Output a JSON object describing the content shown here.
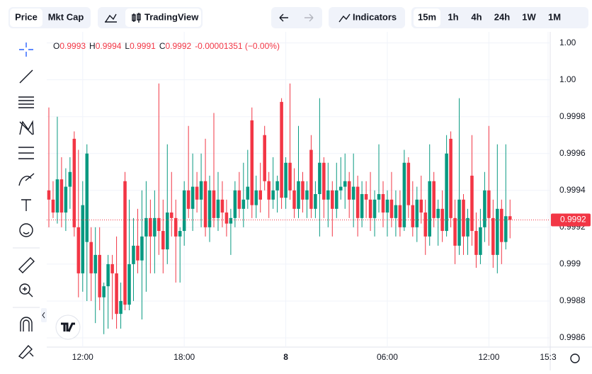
{
  "toolbar": {
    "tabs": [
      "Price",
      "Mkt Cap"
    ],
    "chart_style": "TradingView",
    "indicators": "Indicators",
    "intervals": [
      "15m",
      "1h",
      "4h",
      "24h",
      "1W",
      "1M"
    ]
  },
  "chart_data": {
    "type": "candlestick",
    "legend": [
      {
        "label": "O",
        "value": "0.9993"
      },
      {
        "label": "H",
        "value": "0.9994"
      },
      {
        "label": "L",
        "value": "0.9991"
      },
      {
        "label": "C",
        "value": "0.9992"
      }
    ],
    "change": "-0.00001351 (−0.00%)",
    "up_color": "#089981",
    "down_color": "#f23645",
    "categories": [
      null,
      null,
      null,
      null,
      null,
      null,
      null,
      null,
      "12:00",
      null,
      null,
      null,
      null,
      null,
      null,
      null,
      null,
      null,
      null,
      null,
      null,
      null,
      null,
      null,
      null,
      null,
      null,
      null,
      null,
      null,
      null,
      null,
      "18:00",
      null,
      null,
      null,
      null,
      null,
      null,
      null,
      null,
      null,
      null,
      null,
      null,
      null,
      null,
      null,
      null,
      null,
      null,
      null,
      null,
      null,
      null,
      null,
      "8",
      null,
      null,
      null,
      null,
      null,
      null,
      null,
      null,
      null,
      null,
      null,
      null,
      null,
      null,
      null,
      null,
      null,
      null,
      null,
      null,
      null,
      null,
      null,
      "06:00",
      null,
      null,
      null,
      null,
      null,
      null,
      null,
      null,
      null,
      null,
      null,
      null,
      null,
      null,
      null,
      null,
      null,
      null,
      null,
      null,
      null,
      null,
      null,
      "12:00",
      null,
      null,
      null,
      null,
      null,
      null,
      null,
      null,
      null,
      null,
      null,
      null,
      null,
      "15:3"
    ],
    "open": [
      0.9994,
      0.99935,
      0.99928,
      0.99946,
      0.99928,
      0.99942,
      0.99968,
      0.9992,
      0.99895,
      0.99912,
      0.99912,
      0.99895,
      0.99905,
      0.99882,
      0.99888,
      0.999,
      0.99895,
      0.99873,
      0.99945,
      0.99878,
      0.999,
      0.9991,
      0.99902,
      0.99915,
      0.99925,
      0.99915,
      0.99925,
      0.99918,
      0.99908,
      0.99928,
      0.99925,
      0.99915,
      0.99918,
      0.9994,
      0.9993,
      0.99942,
      0.99935,
      0.99945,
      0.9992,
      0.9994,
      0.99925,
      0.99935,
      0.99928,
      0.99922,
      0.99925,
      0.9994,
      0.9993,
      0.99935,
      0.99978,
      0.99932,
      0.9994,
      0.9997,
      0.99945,
      0.99935,
      0.9994,
      0.99988,
      0.99936,
      0.99955,
      0.9994,
      0.9993,
      0.99945,
      0.99935,
      0.99962,
      0.9993,
      0.99938,
      0.99955,
      0.99935,
      0.9994,
      0.9993,
      0.9994,
      0.99942,
      0.99945,
      0.99935,
      0.99942,
      0.99925,
      0.99938,
      0.99935,
      0.99925,
      0.99935,
      0.99938,
      0.99928,
      0.99935,
      0.99925,
      0.99932,
      0.9992,
      0.99955,
      0.99932,
      0.9992,
      0.99935,
      0.99928,
      0.99915,
      0.99945,
      0.99925,
      0.9993,
      0.99918,
      0.99968,
      0.99925,
      0.9991,
      0.99935,
      0.99915,
      0.99948,
      0.99918,
      0.99905,
      0.9992,
      0.9994,
      0.99925,
      0.99905,
      0.9993,
      0.99912,
      0.99926,
      null,
      null,
      null,
      null,
      null,
      null,
      null,
      null,
      null
    ],
    "high": [
      0.99985,
      0.99945,
      0.9998,
      0.99958,
      0.99952,
      0.99958,
      0.99972,
      0.99962,
      0.99945,
      0.99965,
      0.9992,
      0.9992,
      0.9992,
      0.9989,
      0.99905,
      0.99905,
      0.99915,
      0.9989,
      0.9995,
      0.99935,
      0.99925,
      0.9993,
      0.9994,
      0.99945,
      0.99935,
      0.9994,
      0.99998,
      0.99935,
      0.99965,
      0.9995,
      0.99935,
      0.9992,
      0.99945,
      0.99975,
      0.9996,
      0.9995,
      0.9996,
      0.99968,
      0.99948,
      0.99982,
      0.9995,
      0.99945,
      0.99935,
      0.9993,
      0.99945,
      0.9995,
      0.99955,
      0.99962,
      0.99985,
      0.99948,
      0.99955,
      0.99975,
      0.9995,
      0.99958,
      0.99948,
      0.9999,
      0.99958,
      0.99998,
      0.99952,
      0.99975,
      0.9995,
      0.99945,
      0.9997,
      0.99945,
      0.9999,
      0.99958,
      0.99955,
      0.99945,
      0.99955,
      0.99958,
      0.9996,
      0.9995,
      0.9996,
      0.99948,
      0.99945,
      0.99945,
      0.9995,
      0.9994,
      0.99965,
      0.99945,
      0.9994,
      0.9995,
      0.9994,
      0.9994,
      0.99962,
      0.99958,
      0.99945,
      0.99942,
      0.99948,
      0.99935,
      0.99965,
      0.9995,
      0.99935,
      0.9994,
      0.9997,
      0.99972,
      0.99935,
      0.9999,
      0.99938,
      0.9993,
      0.9997,
      0.99928,
      0.9993,
      0.9995,
      0.99975,
      0.99935,
      0.99965,
      0.99935,
      0.99965,
      0.99935,
      null,
      null,
      null,
      null,
      null,
      null,
      null,
      null,
      null
    ],
    "low": [
      0.9992,
      0.99925,
      0.99922,
      0.9992,
      0.99918,
      0.9993,
      0.99915,
      0.99882,
      0.99885,
      0.9988,
      0.9988,
      0.99868,
      0.99875,
      0.99862,
      0.99865,
      0.9987,
      0.99865,
      0.99865,
      0.99875,
      0.99875,
      0.9988,
      0.99895,
      0.9987,
      0.99885,
      0.99895,
      0.99895,
      0.99905,
      0.99895,
      0.999,
      0.99915,
      0.9989,
      0.9989,
      0.9991,
      0.99925,
      0.99918,
      0.99928,
      0.9992,
      0.99915,
      0.99912,
      0.9992,
      0.99918,
      0.9992,
      0.99915,
      0.99905,
      0.9992,
      0.99925,
      0.9992,
      0.9993,
      0.99925,
      0.99925,
      0.99928,
      0.9994,
      0.99925,
      0.9993,
      0.99928,
      0.9993,
      0.9993,
      0.99935,
      0.99925,
      0.99925,
      0.99928,
      0.99925,
      0.99925,
      0.99925,
      0.99915,
      0.99925,
      0.9992,
      0.99915,
      0.99925,
      0.99935,
      0.9993,
      0.99925,
      0.9992,
      0.99915,
      0.9992,
      0.99925,
      0.99918,
      0.99915,
      0.99928,
      0.9992,
      0.99915,
      0.9992,
      0.99915,
      0.99915,
      0.99918,
      0.99925,
      0.99915,
      0.99912,
      0.99922,
      0.99905,
      0.9991,
      0.9992,
      0.9991,
      0.99912,
      0.99915,
      0.9992,
      0.999,
      0.99905,
      0.99905,
      0.99905,
      0.9991,
      0.99898,
      0.999,
      0.99912,
      0.9991,
      0.99898,
      0.99895,
      0.999,
      0.99908,
      0.99914,
      null,
      null,
      null,
      null,
      null,
      null,
      null,
      null,
      null
    ],
    "close": [
      0.99935,
      0.99928,
      0.99946,
      0.99928,
      0.99942,
      0.9995,
      0.9992,
      0.99895,
      0.99932,
      0.9996,
      0.99895,
      0.99905,
      0.99882,
      0.99888,
      0.999,
      0.99895,
      0.99873,
      0.9988,
      0.99878,
      0.999,
      0.9991,
      0.99902,
      0.99915,
      0.99925,
      0.99915,
      0.99925,
      0.99918,
      0.99908,
      0.99928,
      0.99925,
      0.99915,
      0.99918,
      0.9994,
      0.9993,
      0.99942,
      0.99935,
      0.99945,
      0.9992,
      0.9994,
      0.99925,
      0.99935,
      0.99928,
      0.99922,
      0.99925,
      0.9994,
      0.9993,
      0.99935,
      0.99942,
      0.99932,
      0.9994,
      0.99935,
      0.99945,
      0.99935,
      0.9994,
      0.99945,
      0.99936,
      0.99955,
      0.9994,
      0.9993,
      0.99945,
      0.99935,
      0.9994,
      0.9993,
      0.99938,
      0.99955,
      0.99935,
      0.9994,
      0.9993,
      0.9994,
      0.99942,
      0.99945,
      0.99935,
      0.99942,
      0.99925,
      0.99938,
      0.99935,
      0.99925,
      0.99935,
      0.99938,
      0.99928,
      0.99935,
      0.99925,
      0.99932,
      0.9992,
      0.99955,
      0.99932,
      0.9992,
      0.99935,
      0.99928,
      0.99915,
      0.99945,
      0.99925,
      0.9993,
      0.99918,
      0.9996,
      0.99925,
      0.9991,
      0.99935,
      0.99915,
      0.99925,
      0.99918,
      0.99905,
      0.9992,
      0.9994,
      0.99925,
      0.99905,
      0.9993,
      0.99912,
      0.99926,
      0.99924,
      null,
      null,
      null,
      null,
      null,
      null,
      null,
      null,
      null
    ],
    "ylim": [
      0.99855,
      1.00026
    ],
    "yticks": [
      0.9986,
      0.9988,
      0.999,
      0.9992,
      0.9994,
      0.9996,
      0.9998,
      {
        "value": 1.0,
        "label": "1.00"
      },
      {
        "value": 1.0002,
        "label": "1.00"
      }
    ],
    "last_price": {
      "value": 0.99924,
      "label": "0.9992"
    },
    "grid": true
  }
}
